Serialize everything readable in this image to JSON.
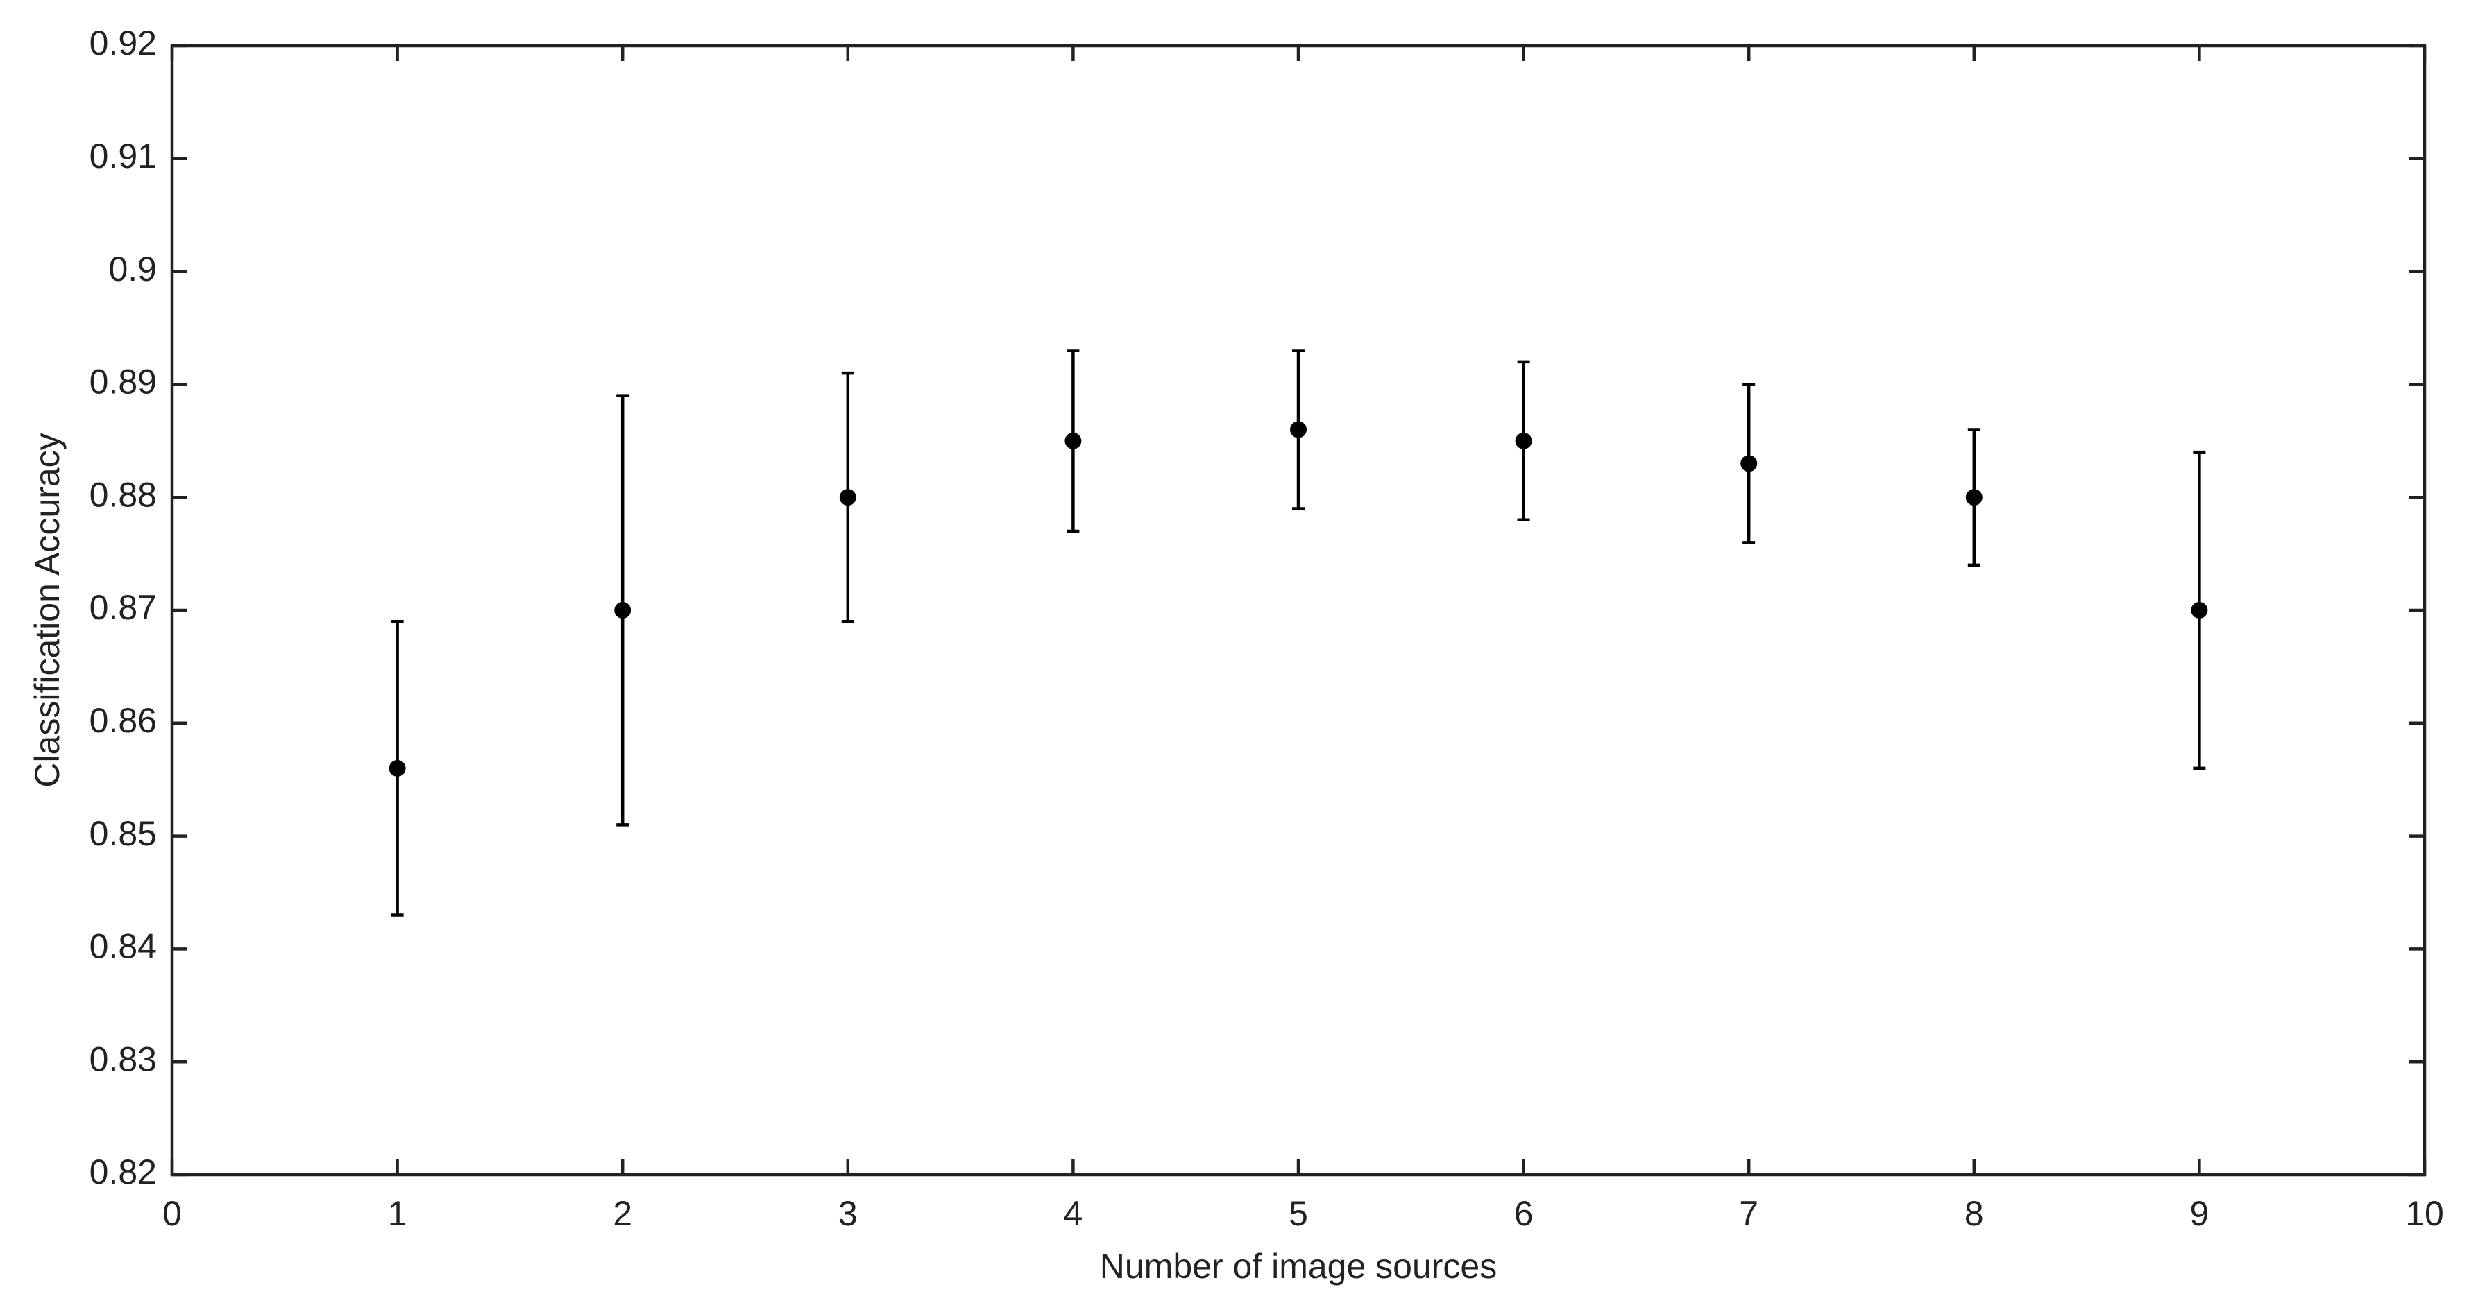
{
  "chart_data": {
    "type": "errorbar",
    "x_label": "Number of image sources",
    "y_label": "Classification Accuracy",
    "x": [
      1,
      2,
      3,
      4,
      5,
      6,
      7,
      8,
      9
    ],
    "values": [
      0.856,
      0.87,
      0.88,
      0.885,
      0.886,
      0.885,
      0.883,
      0.88,
      0.87
    ],
    "errors": [
      0.013,
      0.019,
      0.011,
      0.008,
      0.007,
      0.007,
      0.007,
      0.006,
      0.014
    ],
    "color": "#000000",
    "xlim": [
      0,
      10
    ],
    "xticks": [
      0,
      1,
      2,
      3,
      4,
      5,
      6,
      7,
      8,
      9,
      10
    ],
    "ylim": [
      0.82,
      0.92
    ],
    "yticks": [
      0.82,
      0.83,
      0.84,
      0.85,
      0.86,
      0.87,
      0.88,
      0.89,
      0.9,
      0.91,
      0.92
    ],
    "grid": false
  }
}
